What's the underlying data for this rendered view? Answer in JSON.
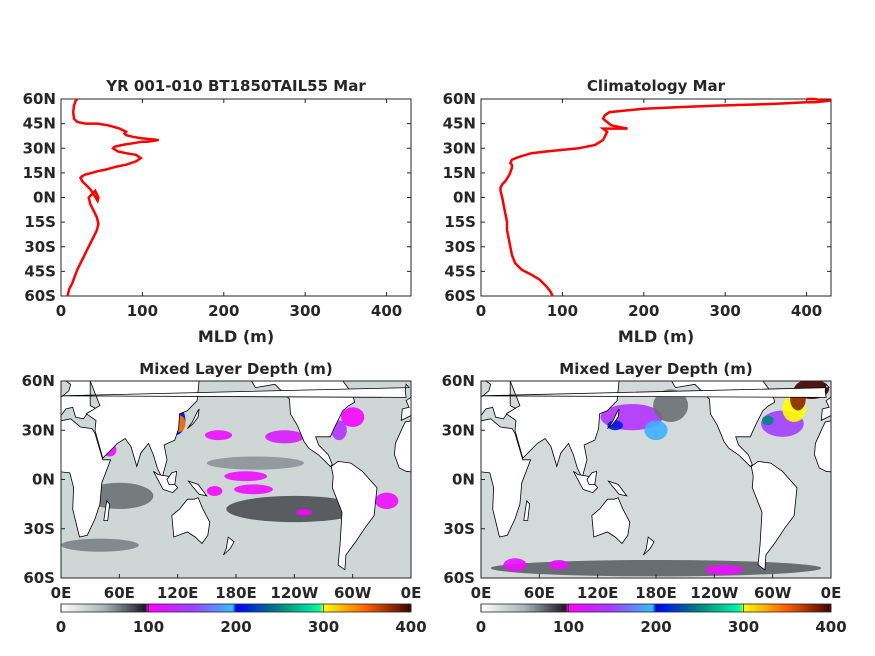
{
  "colors": {
    "profile_line": "#ff0000",
    "axes": "#262626",
    "land": "#ffffff",
    "coast": "#000000"
  },
  "profile_charts": [
    {
      "type": "line",
      "title": "YR 001-010 BT1850TAIL55 Mar",
      "xlabel": "MLD (m)",
      "xlim": [
        0,
        430
      ],
      "ylim": [
        -60,
        60
      ],
      "xticks": [
        "0",
        "100",
        "200",
        "300",
        "400"
      ],
      "yticks": [
        "60N",
        "45N",
        "30N",
        "15N",
        "0N",
        "15S",
        "30S",
        "45S",
        "60S"
      ],
      "grid": false,
      "series": [
        {
          "x": [
            8,
            10,
            14,
            17,
            20,
            24,
            28,
            32,
            36,
            40,
            44,
            46,
            44,
            40,
            36,
            34,
            38,
            42,
            46,
            45,
            40,
            36,
            30,
            26,
            24,
            26,
            30,
            38,
            45,
            55,
            62,
            70,
            80,
            92,
            98,
            92,
            80,
            70,
            64,
            66,
            75,
            88,
            100,
            106,
            120,
            100,
            88,
            80,
            78,
            80,
            72,
            58,
            45,
            34,
            30,
            20,
            16,
            15,
            16,
            18,
            20
          ],
          "y": [
            -60,
            -56,
            -52,
            -48,
            -44,
            -40,
            -36,
            -32,
            -28,
            -24,
            -20,
            -16,
            -12,
            -8,
            -4,
            0,
            2,
            4,
            0,
            -2,
            2,
            5,
            8,
            10,
            12,
            13,
            14,
            15,
            16,
            17,
            18,
            19,
            20,
            22,
            24,
            26,
            27,
            28,
            30,
            31,
            32,
            33,
            34,
            34,
            35,
            36,
            37,
            38,
            39,
            40,
            42,
            44,
            45,
            45,
            45,
            46,
            48,
            52,
            56,
            59,
            60
          ]
        }
      ]
    },
    {
      "type": "line",
      "title": "Climatology Mar",
      "xlabel": "MLD (m)",
      "xlim": [
        0,
        430
      ],
      "ylim": [
        -60,
        60
      ],
      "xticks": [
        "0",
        "100",
        "200",
        "300",
        "400"
      ],
      "yticks": [
        "60N",
        "45N",
        "30N",
        "15N",
        "0N",
        "15S",
        "30S",
        "45S",
        "60S"
      ],
      "grid": false,
      "series": [
        {
          "x": [
            88,
            85,
            80,
            72,
            62,
            50,
            42,
            38,
            36,
            34,
            32,
            32,
            30,
            28,
            26,
            24,
            24,
            26,
            30,
            35,
            38,
            38,
            36,
            38,
            48,
            62,
            80,
            100,
            120,
            140,
            150,
            152,
            155,
            150,
            158,
            180,
            160,
            155,
            150,
            152,
            158,
            178,
            200,
            240,
            290,
            360,
            400,
            410,
            430,
            420,
            410,
            400
          ],
          "y": [
            -60,
            -57,
            -54,
            -50,
            -47,
            -44,
            -40,
            -35,
            -30,
            -25,
            -20,
            -15,
            -10,
            -5,
            0,
            4,
            6,
            8,
            10,
            14,
            18,
            20,
            21,
            23,
            25,
            27,
            28,
            29,
            30,
            32,
            35,
            37,
            40,
            42,
            42,
            42,
            44,
            46,
            48,
            50,
            52,
            53,
            54,
            55,
            56,
            57,
            58,
            58,
            59,
            59,
            60,
            60
          ]
        }
      ]
    }
  ],
  "map_charts": [
    {
      "type": "heatmap",
      "title": "Mixed Layer Depth (m)",
      "xticks": [
        "0E",
        "60E",
        "120E",
        "180E",
        "120W",
        "60W",
        "0E"
      ],
      "yticks": [
        "60N",
        "30N",
        "0N",
        "30S",
        "60S"
      ],
      "lat_range": [
        -60,
        60
      ],
      "lon_range": [
        0,
        360
      ],
      "colorbar": {
        "ticks": [
          "0",
          "100",
          "200",
          "300",
          "400"
        ],
        "range": [
          0,
          400
        ]
      },
      "features": [
        {
          "lon": 122,
          "lat": 34,
          "rx": 6,
          "ry": 5,
          "value": 340
        },
        {
          "lon": 118,
          "lat": 36,
          "rx": 10,
          "ry": 9,
          "value": 200
        },
        {
          "lon": 162,
          "lat": 27,
          "rx": 14,
          "ry": 3,
          "value": 110
        },
        {
          "lon": 230,
          "lat": 26,
          "rx": 20,
          "ry": 4,
          "value": 120
        },
        {
          "lon": 286,
          "lat": 30,
          "rx": 8,
          "ry": 6,
          "value": 140
        },
        {
          "lon": 300,
          "lat": 38,
          "rx": 12,
          "ry": 6,
          "value": 105
        },
        {
          "lon": 50,
          "lat": 18,
          "rx": 7,
          "ry": 4,
          "value": 110
        },
        {
          "lon": 190,
          "lat": 2,
          "rx": 22,
          "ry": 3,
          "value": 110
        },
        {
          "lon": 198,
          "lat": -6,
          "rx": 20,
          "ry": 3,
          "value": 110
        },
        {
          "lon": 158,
          "lat": -7,
          "rx": 8,
          "ry": 3,
          "value": 105
        },
        {
          "lon": 335,
          "lat": -13,
          "rx": 12,
          "ry": 5,
          "value": 110
        },
        {
          "lon": 250,
          "lat": -20,
          "rx": 8,
          "ry": 2,
          "value": 100
        },
        {
          "lon": 240,
          "lat": -18,
          "rx": 70,
          "ry": 8,
          "value": 80
        },
        {
          "lon": 60,
          "lat": -10,
          "rx": 35,
          "ry": 8,
          "value": 70
        },
        {
          "lon": 200,
          "lat": 10,
          "rx": 50,
          "ry": 4,
          "value": 60
        },
        {
          "lon": 40,
          "lat": -40,
          "rx": 40,
          "ry": 4,
          "value": 65
        }
      ]
    },
    {
      "type": "heatmap",
      "title": "Mixed Layer Depth (m)",
      "xticks": [
        "0E",
        "60E",
        "120E",
        "180E",
        "120W",
        "60W",
        "0E"
      ],
      "yticks": [
        "60N",
        "30N",
        "0N",
        "30S",
        "60S"
      ],
      "lat_range": [
        -60,
        60
      ],
      "lon_range": [
        0,
        360
      ],
      "colorbar": {
        "ticks": [
          "0",
          "100",
          "200",
          "300",
          "400"
        ],
        "range": [
          0,
          400
        ]
      },
      "features": [
        {
          "lon": 155,
          "lat": 38,
          "rx": 32,
          "ry": 8,
          "value": 140
        },
        {
          "lon": 180,
          "lat": 30,
          "rx": 12,
          "ry": 6,
          "value": 190
        },
        {
          "lon": 138,
          "lat": 33,
          "rx": 8,
          "ry": 3,
          "value": 210
        },
        {
          "lon": 310,
          "lat": 34,
          "rx": 22,
          "ry": 8,
          "value": 150
        },
        {
          "lon": 322,
          "lat": 43,
          "rx": 12,
          "ry": 8,
          "value": 300
        },
        {
          "lon": 326,
          "lat": 49,
          "rx": 8,
          "ry": 7,
          "value": 380
        },
        {
          "lon": 340,
          "lat": 55,
          "rx": 18,
          "ry": 6,
          "value": 400
        },
        {
          "lon": 295,
          "lat": 36,
          "rx": 6,
          "ry": 3,
          "value": 250
        },
        {
          "lon": 35,
          "lat": -52,
          "rx": 12,
          "ry": 4,
          "value": 110
        },
        {
          "lon": 80,
          "lat": -52,
          "rx": 10,
          "ry": 3,
          "value": 110
        },
        {
          "lon": 250,
          "lat": -55,
          "rx": 20,
          "ry": 3,
          "value": 110
        },
        {
          "lon": 180,
          "lat": -54,
          "rx": 170,
          "ry": 5,
          "value": 75
        },
        {
          "lon": 195,
          "lat": 45,
          "rx": 18,
          "ry": 10,
          "value": 70
        }
      ]
    }
  ]
}
